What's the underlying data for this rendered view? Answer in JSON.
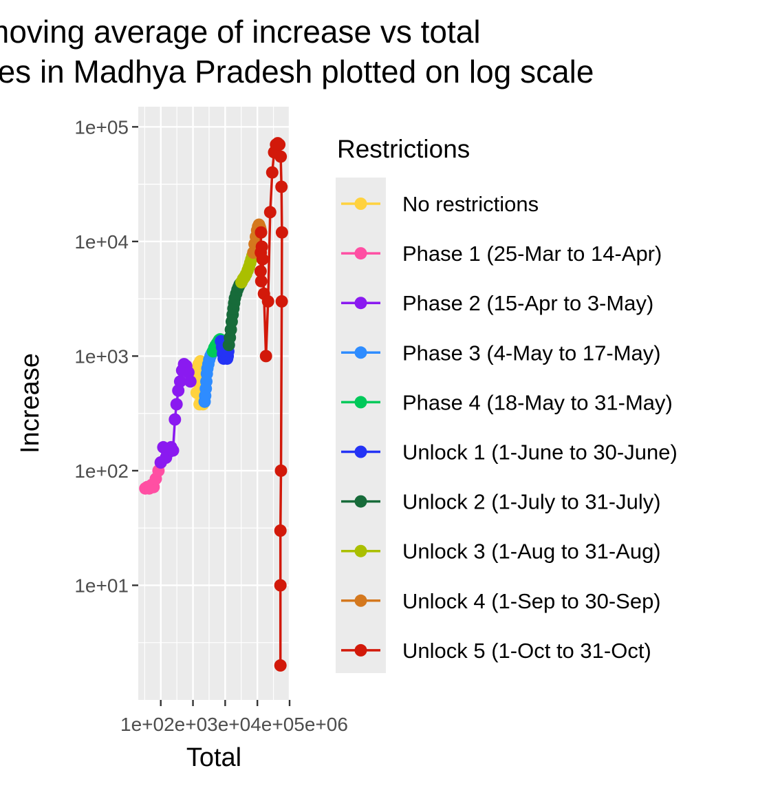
{
  "chart_data": {
    "type": "line",
    "title_lines": [
      "moving average of increase vs total",
      "cases in Madhya Pradesh plotted on log scale"
    ],
    "xlabel": "Total",
    "ylabel": "Increase",
    "x_scale": "log10",
    "y_scale": "log10",
    "xlim": [
      20,
      1000000
    ],
    "ylim": [
      1,
      150000
    ],
    "x_ticks": [
      {
        "value": 100,
        "label": "1e+02"
      },
      {
        "value": 1000,
        "label": "1e+03"
      },
      {
        "value": 10000,
        "label": "1e+04"
      },
      {
        "value": 100000,
        "label": "1e+05"
      },
      {
        "value": 1000000,
        "label": "1e+06"
      }
    ],
    "x_tick_text": "1e+02e+03e+04e+05e+06",
    "y_ticks": [
      {
        "value": 10,
        "label": "1e+01"
      },
      {
        "value": 100,
        "label": "1e+02"
      },
      {
        "value": 1000,
        "label": "1e+03"
      },
      {
        "value": 10000,
        "label": "1e+04"
      },
      {
        "value": 100000,
        "label": "1e+05"
      }
    ],
    "grid": true,
    "legend_title": "Restrictions",
    "legend_position": "right",
    "series": [
      {
        "name": "No restrictions",
        "color": "#FFD23F",
        "x": [
          1200,
          1400,
          1300,
          1800,
          1700,
          1500,
          1350,
          1600,
          1900,
          1700,
          1450,
          1650,
          2000,
          2100,
          1950,
          2200,
          2050,
          2300
        ],
        "y": [
          750,
          600,
          480,
          420,
          700,
          850,
          640,
          380,
          560,
          900,
          680,
          520,
          390,
          820,
          620,
          480,
          380,
          700
        ]
      },
      {
        "name": "Phase 1 (25-Mar to 14-Apr)",
        "color": "#FF4FA3",
        "x": [
          33,
          38,
          44,
          52,
          60,
          70,
          85,
          100
        ],
        "y": [
          70,
          72,
          70,
          75,
          72,
          85,
          100,
          118
        ]
      },
      {
        "name": "Phase 2 (15-Apr to 3-May)",
        "color": "#8A1AF0",
        "x": [
          100,
          120,
          145,
          175,
          210,
          240,
          275,
          310,
          350,
          400,
          460,
          530,
          620,
          720,
          830
        ],
        "y": [
          118,
          160,
          130,
          145,
          160,
          150,
          280,
          380,
          500,
          600,
          750,
          850,
          820,
          720,
          600
        ]
      },
      {
        "name": "Phase 3 (4-May to 17-May)",
        "color": "#2E8CFF",
        "x": [
          2300,
          2400,
          2500,
          2600,
          2700,
          2800,
          3000,
          3200,
          3500,
          3800,
          4200
        ],
        "y": [
          400,
          450,
          520,
          600,
          700,
          780,
          850,
          930,
          1000,
          1050,
          1100
        ]
      },
      {
        "name": "Phase 4 (18-May to 31-May)",
        "color": "#00C95A",
        "x": [
          4200,
          4600,
          5000,
          5500,
          6000,
          6500,
          7000,
          7400
        ],
        "y": [
          1100,
          1180,
          1230,
          1280,
          1330,
          1380,
          1400,
          1350
        ]
      },
      {
        "name": "Unlock 1 (1-June to 30-June)",
        "color": "#2433F5",
        "x": [
          7400,
          8000,
          8500,
          9000,
          9500,
          10000,
          10500,
          11000,
          11500,
          12000,
          12500,
          13000
        ],
        "y": [
          1350,
          1200,
          1050,
          950,
          1000,
          1100,
          1050,
          1000,
          950,
          1000,
          1100,
          1250
        ]
      },
      {
        "name": "Unlock 2 (1-July to 31-July)",
        "color": "#176B3A",
        "x": [
          13000,
          14000,
          15000,
          16000,
          17000,
          18000,
          19000,
          20000,
          22000,
          24000,
          26000,
          28000,
          30000,
          32000
        ],
        "y": [
          1250,
          1450,
          1700,
          2000,
          2300,
          2600,
          2900,
          3200,
          3500,
          3800,
          4000,
          4200,
          4300,
          4400
        ]
      },
      {
        "name": "Unlock 3 (1-Aug to 31-Aug)",
        "color": "#AABF00",
        "x": [
          32000,
          36000,
          40000,
          45000,
          50000,
          55000,
          60000,
          65000,
          70000,
          75000
        ],
        "y": [
          4400,
          4700,
          4900,
          5200,
          5600,
          6000,
          6500,
          7000,
          7500,
          8000
        ]
      },
      {
        "name": "Unlock 4 (1-Sep to 30-Sep)",
        "color": "#D4781E",
        "x": [
          75000,
          82000,
          90000,
          98000,
          105000,
          112000,
          118000,
          123000,
          127000,
          130000
        ],
        "y": [
          8000,
          9500,
          11000,
          12500,
          13500,
          14000,
          13500,
          13000,
          12500,
          12000
        ]
      },
      {
        "name": "Unlock 5 (1-Oct to 31-Oct)",
        "color": "#D2190A",
        "x": [
          130000,
          128000,
          126000,
          132000,
          138000,
          145000,
          160000,
          185000,
          215000,
          250000,
          290000,
          330000,
          380000,
          430000,
          480000,
          530000,
          560000,
          580000,
          570000,
          540000,
          520000,
          520000,
          520000
        ],
        "y": [
          12000,
          8000,
          5500,
          4500,
          9000,
          7000,
          3500,
          1000,
          3000,
          18000,
          40000,
          60000,
          70000,
          72000,
          70000,
          55000,
          30000,
          12000,
          3000,
          100,
          30,
          10,
          2
        ]
      }
    ]
  }
}
